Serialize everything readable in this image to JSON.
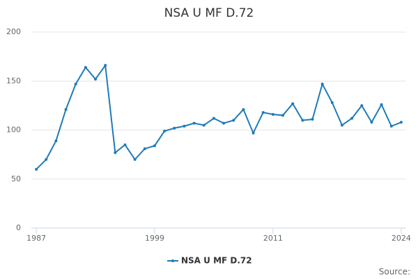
{
  "chart_data": {
    "type": "line",
    "title": "NSA U MF D.72",
    "x": [
      1987,
      1988,
      1989,
      1990,
      1991,
      1992,
      1993,
      1994,
      1995,
      1996,
      1997,
      1998,
      1999,
      2000,
      2001,
      2002,
      2003,
      2004,
      2005,
      2006,
      2007,
      2008,
      2009,
      2010,
      2011,
      2012,
      2013,
      2014,
      2015,
      2016,
      2017,
      2018,
      2019,
      2020,
      2021,
      2022,
      2023,
      2024
    ],
    "series": [
      {
        "name": "NSA U MF D.72",
        "color": "#1f7bb6",
        "values": [
          60,
          70,
          89,
          121,
          147,
          164,
          152,
          166,
          77,
          85,
          70,
          81,
          84,
          99,
          102,
          104,
          107,
          105,
          112,
          107,
          110,
          121,
          97,
          118,
          116,
          115,
          127,
          110,
          111,
          147,
          128,
          105,
          112,
          125,
          108,
          126,
          104,
          108
        ]
      }
    ],
    "xlim": [
      1986.5,
      2024.5
    ],
    "xticks": [
      1987,
      1999,
      2011,
      2024
    ],
    "ylim": [
      0,
      200
    ],
    "yticks": [
      0,
      50,
      100,
      150,
      200
    ],
    "grid": true,
    "legend": "bottom",
    "source": "Source:"
  }
}
